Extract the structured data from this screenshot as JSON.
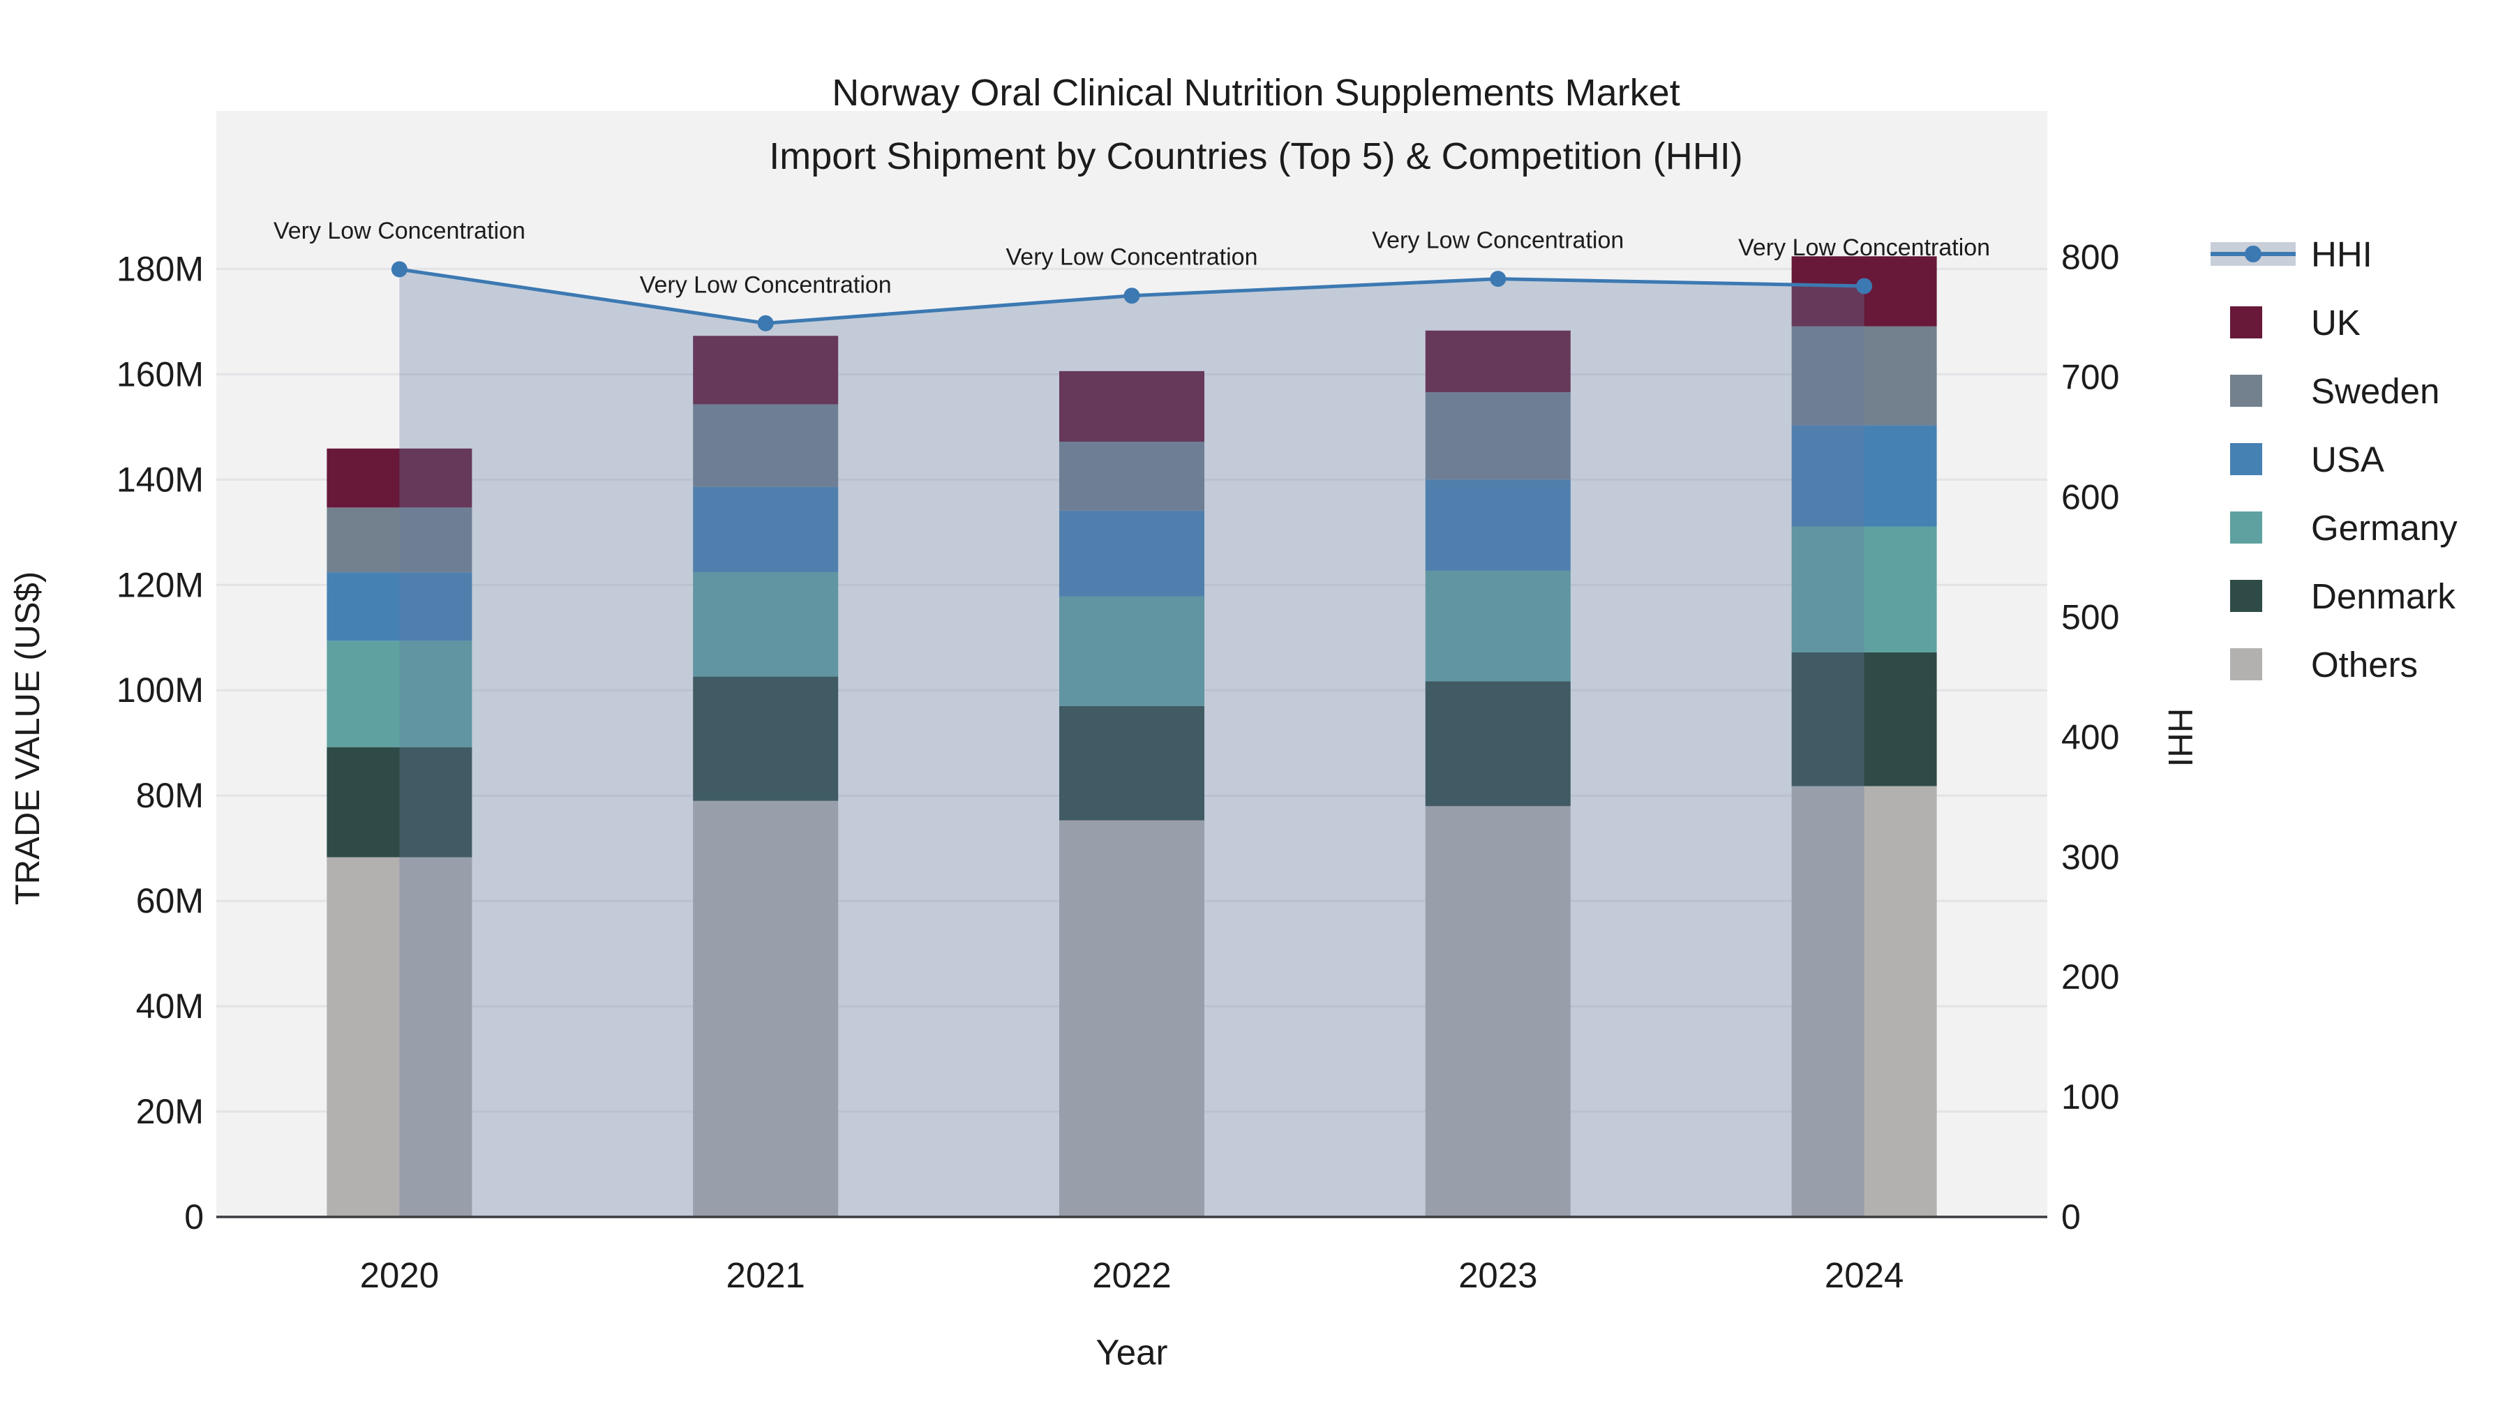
{
  "title": {
    "line1": "Norway Oral Clinical Nutrition Supplements Market",
    "line2": "Import Shipment by Countries (Top 5) & Competition (HHI)"
  },
  "colors": {
    "plot_bg": "#f2f2f3",
    "grid": "#e3e3e6",
    "axis_line": "#3b3b3f",
    "hhi_line": "#3c79b2",
    "area_fill": "rgba(99,124,160,0.33)",
    "uk": "#681839",
    "sweden": "#73818f",
    "usa": "#4681b4",
    "germany": "#5fa1a1",
    "denmark": "#2f4b47",
    "others": "#b3b1af"
  },
  "chart_data": {
    "type": "combo: stacked-bar + line (secondary axis) + area",
    "categories": [
      "2020",
      "2021",
      "2022",
      "2023",
      "2024"
    ],
    "bar_units": "million US$",
    "bar_series": [
      {
        "name": "Others",
        "color": "#b3b1af",
        "values": [
          68.3,
          79.0,
          75.3,
          78.0,
          81.8
        ]
      },
      {
        "name": "Denmark",
        "color": "#2f4b47",
        "values": [
          20.9,
          23.6,
          21.7,
          23.7,
          25.4
        ]
      },
      {
        "name": "Germany",
        "color": "#5fa1a1",
        "values": [
          20.2,
          19.8,
          20.8,
          21.0,
          23.9
        ]
      },
      {
        "name": "USA",
        "color": "#4681b4",
        "values": [
          13.0,
          16.2,
          16.3,
          17.3,
          19.2
        ]
      },
      {
        "name": "Sweden",
        "color": "#73818f",
        "values": [
          12.3,
          15.7,
          13.1,
          16.6,
          18.8
        ]
      },
      {
        "name": "UK",
        "color": "#681839",
        "values": [
          11.2,
          13.0,
          13.4,
          11.7,
          13.3
        ]
      }
    ],
    "bar_totals_musd": [
      145.9,
      167.3,
      160.6,
      168.3,
      182.4
    ],
    "line_series": {
      "name": "HHI",
      "color": "#3c79b2",
      "area_fill": "rgba(99,124,160,0.33)",
      "values": [
        790,
        745,
        768,
        782,
        776
      ]
    },
    "annotations": [
      "Very Low Concentration",
      "Very Low Concentration",
      "Very Low Concentration",
      "Very Low Concentration",
      "Very Low Concentration"
    ],
    "left_axis": {
      "title": "TRADE VALUE (US$)",
      "tick_values": [
        0,
        20,
        40,
        60,
        80,
        100,
        120,
        140,
        160,
        180
      ],
      "tick_labels": [
        "0",
        "20M",
        "40M",
        "60M",
        "80M",
        "100M",
        "120M",
        "140M",
        "160M",
        "180M"
      ],
      "range": [
        0,
        210
      ]
    },
    "right_axis": {
      "title": "HHI",
      "tick_values": [
        0,
        100,
        200,
        300,
        400,
        500,
        600,
        700,
        800
      ],
      "tick_labels": [
        "0",
        "100",
        "200",
        "300",
        "400",
        "500",
        "600",
        "700",
        "800"
      ],
      "range": [
        0,
        922
      ]
    },
    "x_axis": {
      "title": "Year"
    },
    "grid": true,
    "legend_position": "right"
  },
  "legend": [
    {
      "label": "HHI",
      "type": "line",
      "color": "#3c79b2",
      "band": "#c9cfd9"
    },
    {
      "label": "UK",
      "type": "square",
      "color": "#681839"
    },
    {
      "label": "Sweden",
      "type": "square",
      "color": "#73818f"
    },
    {
      "label": "USA",
      "type": "square",
      "color": "#4681b4"
    },
    {
      "label": "Germany",
      "type": "square",
      "color": "#5fa1a1"
    },
    {
      "label": "Denmark",
      "type": "square",
      "color": "#2f4b47"
    },
    {
      "label": "Others",
      "type": "square",
      "color": "#b3b1af"
    }
  ]
}
